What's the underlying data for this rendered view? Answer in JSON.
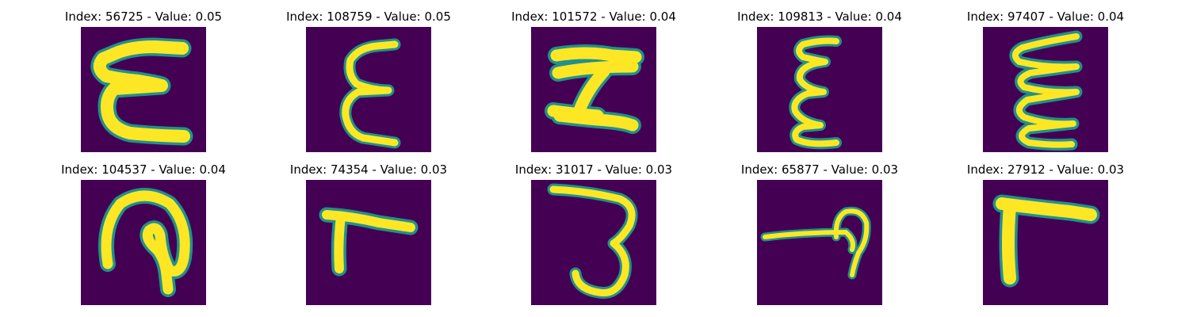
{
  "background_color": "#440154",
  "stroke_color": "#fde725",
  "edge_color": "#21918c",
  "panels": [
    {
      "title": "Index: 56725 - Value: 0.05",
      "glyph": "epsilon-bold"
    },
    {
      "title": "Index: 108759 - Value: 0.05",
      "glyph": "epsilon"
    },
    {
      "title": "Index: 101572 - Value: 0.04",
      "glyph": "h-shape"
    },
    {
      "title": "Index: 109813 - Value: 0.04",
      "glyph": "triple-wave-epsilon"
    },
    {
      "title": "Index: 97407 - Value: 0.04",
      "glyph": "zigzag-epsilon"
    },
    {
      "title": "Index: 104537 - Value: 0.04",
      "glyph": "hook-loop"
    },
    {
      "title": "Index: 74354 - Value: 0.03",
      "glyph": "short-l"
    },
    {
      "title": "Index: 31017 - Value: 0.03",
      "glyph": "three-shape"
    },
    {
      "title": "Index: 65877 - Value: 0.03",
      "glyph": "loop-line"
    },
    {
      "title": "Index: 27912 - Value: 0.03",
      "glyph": "reverse-l"
    }
  ]
}
